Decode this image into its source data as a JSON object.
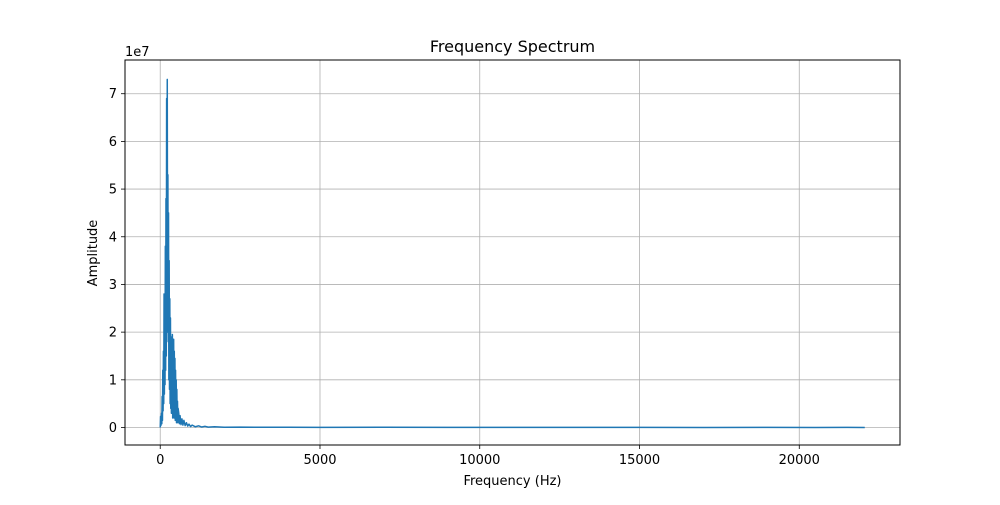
{
  "chart_data": {
    "type": "line",
    "title": "Frequency Spectrum",
    "xlabel": "Frequency (Hz)",
    "ylabel": "Amplitude",
    "y_offset_label": "1e7",
    "xlim": [
      -1102.5,
      23152.5
    ],
    "ylim": [
      -3670000,
      77070000
    ],
    "xticks": [
      0,
      5000,
      10000,
      15000,
      20000
    ],
    "xtick_labels": [
      "0",
      "5000",
      "10000",
      "15000",
      "20000"
    ],
    "yticks": [
      0,
      10000000,
      20000000,
      30000000,
      40000000,
      50000000,
      60000000,
      70000000
    ],
    "ytick_labels": [
      "0",
      "1",
      "2",
      "3",
      "4",
      "5",
      "6",
      "7"
    ],
    "grid": true,
    "line_color": "#1f77b4",
    "x_max": 22050,
    "series": [
      {
        "points": [
          [
            0,
            0
          ],
          [
            10,
            2300000
          ],
          [
            20,
            400000
          ],
          [
            30,
            1200000
          ],
          [
            40,
            3000000
          ],
          [
            50,
            800000
          ],
          [
            60,
            6500000
          ],
          [
            70,
            1500000
          ],
          [
            80,
            12000000
          ],
          [
            90,
            3500000
          ],
          [
            100,
            16000000
          ],
          [
            110,
            5000000
          ],
          [
            120,
            28000000
          ],
          [
            130,
            7000000
          ],
          [
            140,
            22000000
          ],
          [
            150,
            9000000
          ],
          [
            160,
            38000000
          ],
          [
            170,
            12000000
          ],
          [
            180,
            48000000
          ],
          [
            190,
            15000000
          ],
          [
            200,
            69000000
          ],
          [
            210,
            20000000
          ],
          [
            220,
            73000000
          ],
          [
            230,
            28000000
          ],
          [
            240,
            53000000
          ],
          [
            250,
            18000000
          ],
          [
            260,
            45000000
          ],
          [
            270,
            10000000
          ],
          [
            280,
            35000000
          ],
          [
            290,
            8000000
          ],
          [
            300,
            27000000
          ],
          [
            310,
            5000000
          ],
          [
            320,
            23000000
          ],
          [
            330,
            4000000
          ],
          [
            340,
            19000000
          ],
          [
            350,
            3000000
          ],
          [
            360,
            15000000
          ],
          [
            370,
            4000000
          ],
          [
            380,
            19500000
          ],
          [
            390,
            2000000
          ],
          [
            400,
            13000000
          ],
          [
            410,
            3000000
          ],
          [
            420,
            18500000
          ],
          [
            430,
            2000000
          ],
          [
            440,
            16000000
          ],
          [
            450,
            2500000
          ],
          [
            460,
            14500000
          ],
          [
            470,
            1500000
          ],
          [
            480,
            12000000
          ],
          [
            490,
            2000000
          ],
          [
            500,
            10000000
          ],
          [
            510,
            1000000
          ],
          [
            520,
            8000000
          ],
          [
            530,
            1500000
          ],
          [
            540,
            5500000
          ],
          [
            550,
            1000000
          ],
          [
            560,
            4000000
          ],
          [
            580,
            3000000
          ],
          [
            600,
            800000
          ],
          [
            620,
            2500000
          ],
          [
            650,
            600000
          ],
          [
            680,
            1800000
          ],
          [
            710,
            500000
          ],
          [
            740,
            1500000
          ],
          [
            780,
            400000
          ],
          [
            820,
            1000000
          ],
          [
            860,
            300000
          ],
          [
            900,
            700000
          ],
          [
            950,
            200000
          ],
          [
            1000,
            500000
          ],
          [
            1100,
            150000
          ],
          [
            1200,
            350000
          ],
          [
            1300,
            100000
          ],
          [
            1400,
            250000
          ],
          [
            1500,
            80000
          ],
          [
            1700,
            150000
          ],
          [
            2000,
            60000
          ],
          [
            2500,
            90000
          ],
          [
            3000,
            40000
          ],
          [
            4000,
            60000
          ],
          [
            5000,
            30000
          ],
          [
            7000,
            40000
          ],
          [
            9000,
            20000
          ],
          [
            11000,
            30000
          ],
          [
            13000,
            15000
          ],
          [
            15000,
            25000
          ],
          [
            17000,
            12000
          ],
          [
            19000,
            20000
          ],
          [
            20500,
            10000
          ],
          [
            21500,
            15000
          ],
          [
            22050,
            5000
          ]
        ]
      }
    ]
  }
}
